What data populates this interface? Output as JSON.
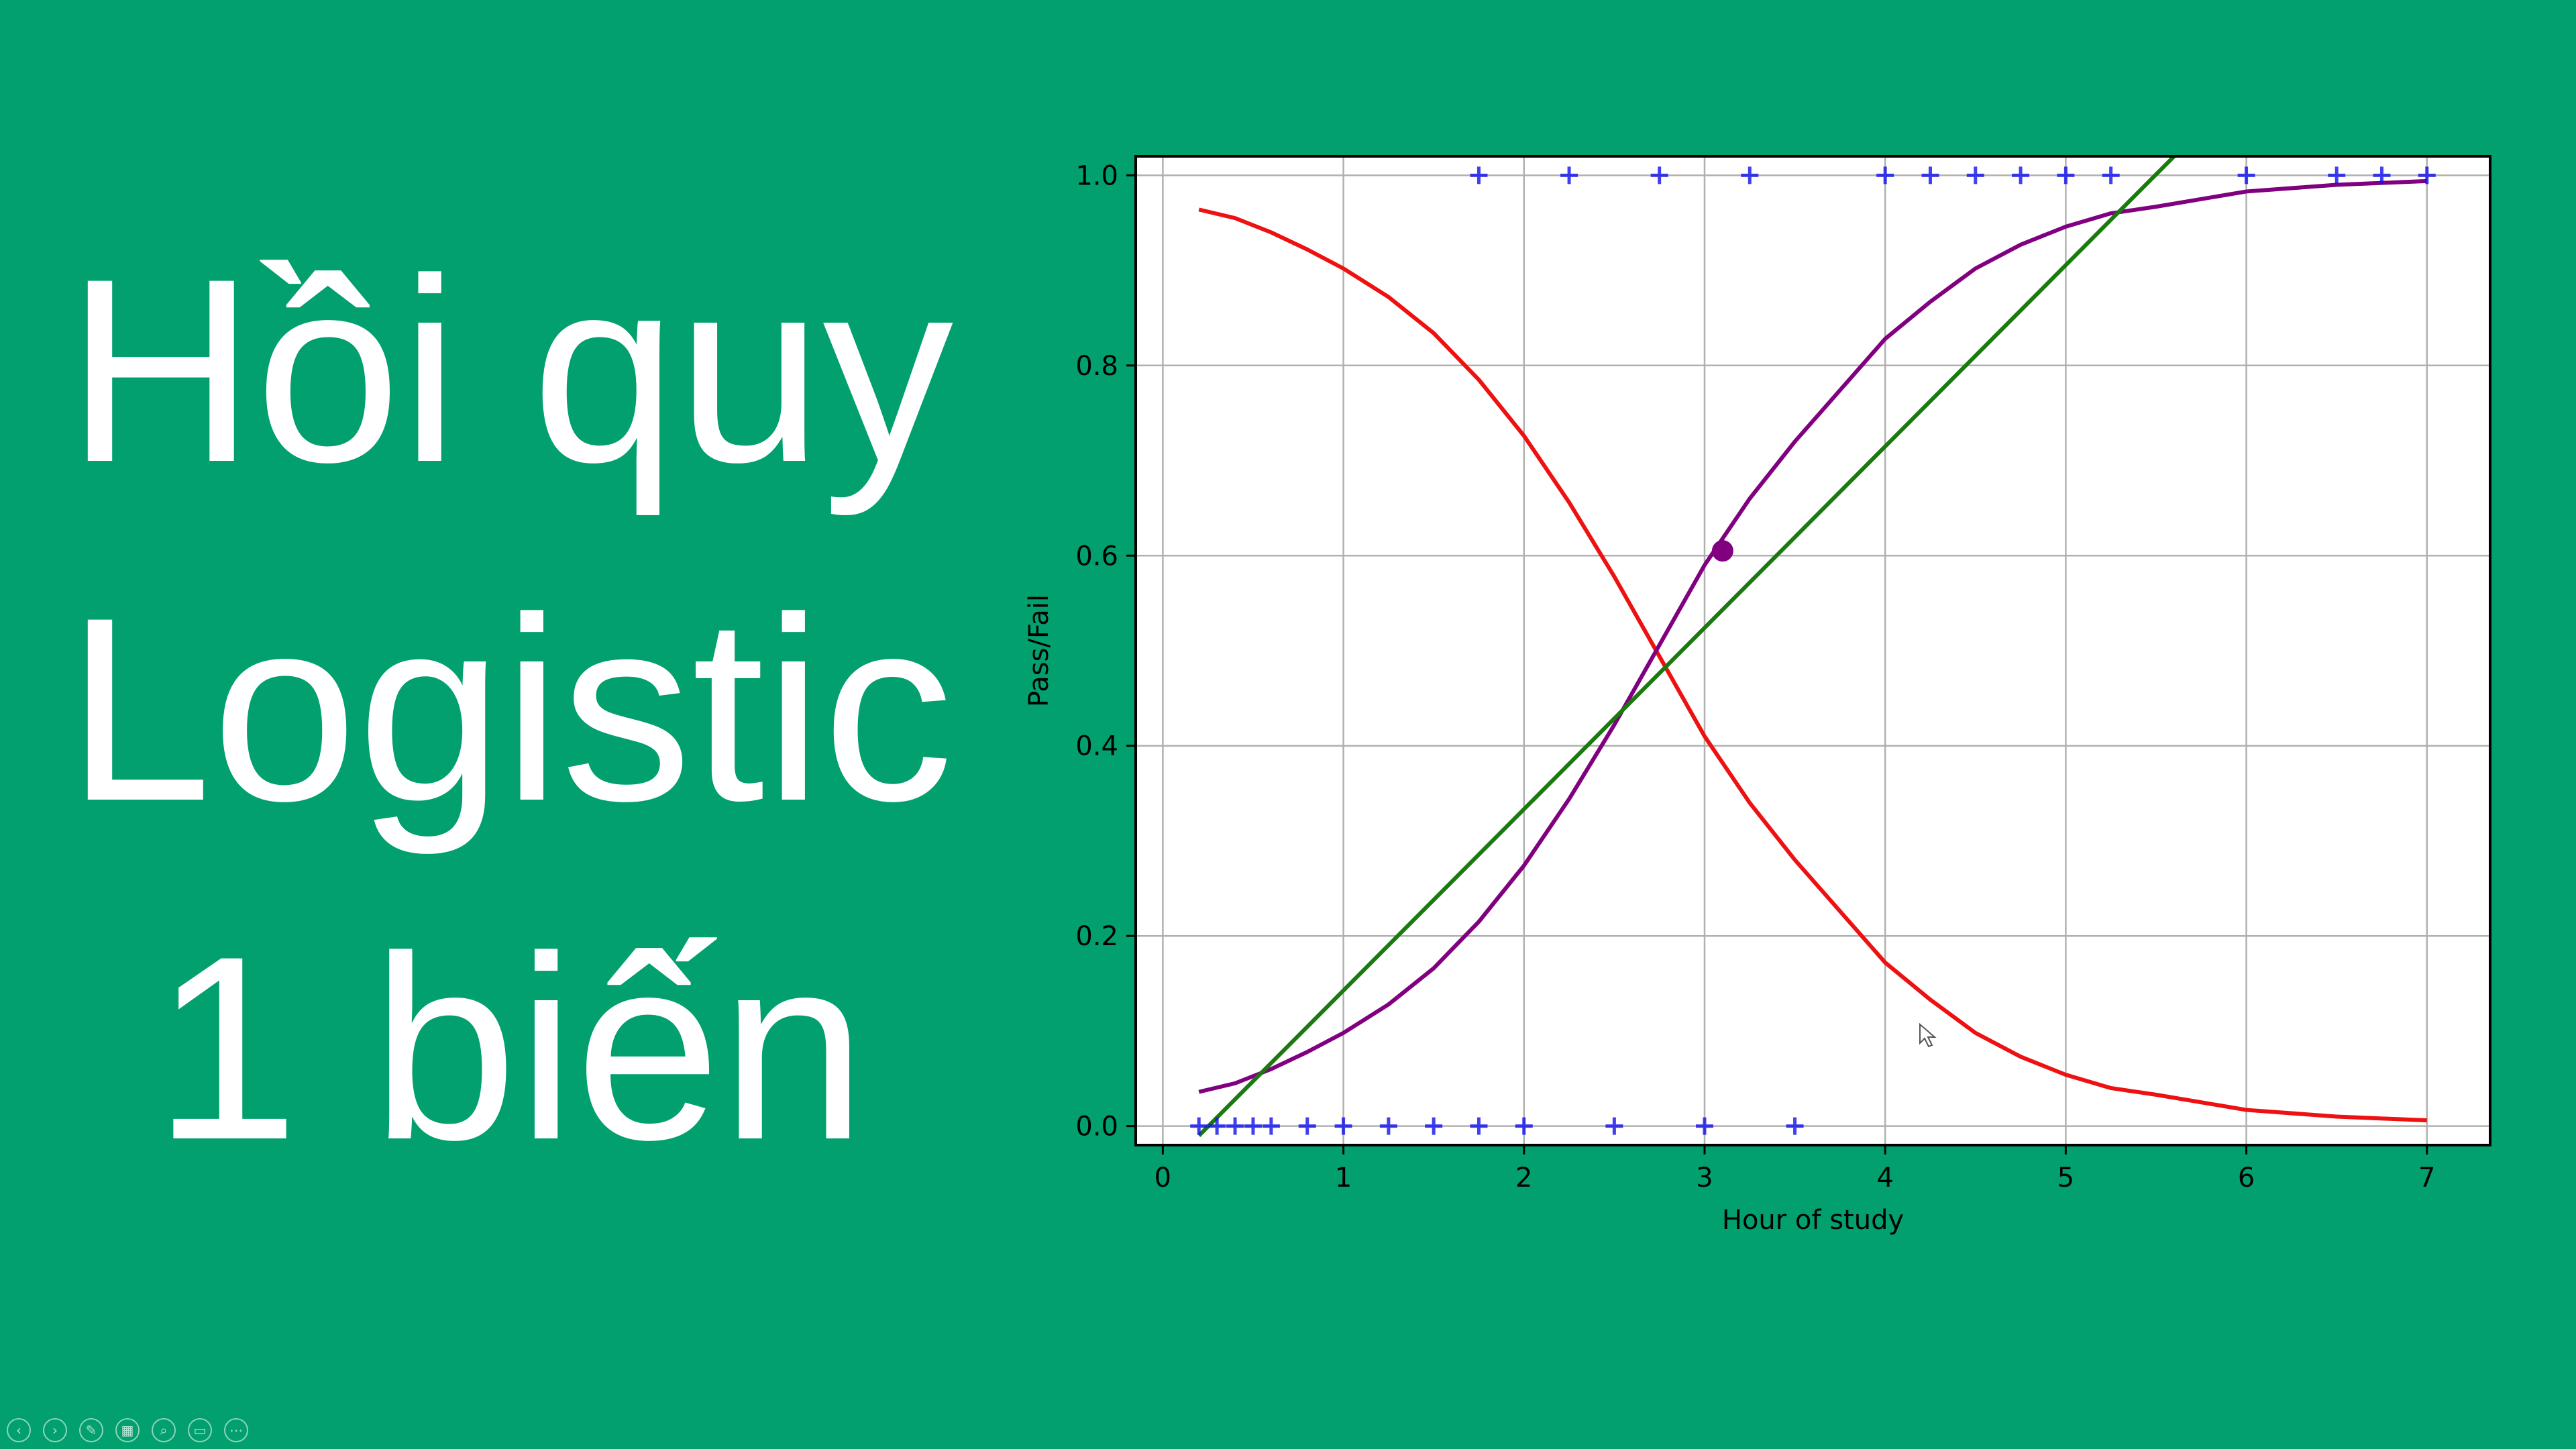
{
  "slide": {
    "title_lines": [
      "Hồi quy",
      "Logistic",
      "1 biến"
    ],
    "background": "#02a06e",
    "text_color": "#ffffff"
  },
  "toolbar": {
    "items": [
      {
        "name": "previous-slide",
        "icon": "chevron-left-icon",
        "glyph": "‹"
      },
      {
        "name": "next-slide",
        "icon": "chevron-right-icon",
        "glyph": "›"
      },
      {
        "name": "pen-tool",
        "icon": "pen-icon",
        "glyph": "✎"
      },
      {
        "name": "see-all-slides",
        "icon": "slides-grid-icon",
        "glyph": "▦"
      },
      {
        "name": "zoom",
        "icon": "magnifier-icon",
        "glyph": "⌕"
      },
      {
        "name": "subtitles",
        "icon": "subtitles-icon",
        "glyph": "▭"
      },
      {
        "name": "more-options",
        "icon": "ellipsis-icon",
        "glyph": "⋯"
      }
    ]
  },
  "chart_data": {
    "type": "line",
    "title": "",
    "xlabel": "Hour of study",
    "ylabel": "Pass/Fail",
    "xlim": [
      -0.15,
      7.35
    ],
    "ylim": [
      -0.02,
      1.02
    ],
    "xticks": [
      0,
      1,
      2,
      3,
      4,
      5,
      6,
      7
    ],
    "yticks": [
      0.0,
      0.2,
      0.4,
      0.6,
      0.8,
      1.0
    ],
    "ytick_labels": [
      "0.0",
      "0.2",
      "0.4",
      "0.6",
      "0.8",
      "1.0"
    ],
    "grid": true,
    "legend": "none",
    "series": [
      {
        "kind": "line",
        "color": "#ee1111",
        "x": [
          0.2,
          0.4,
          0.6,
          0.8,
          1.0,
          1.25,
          1.5,
          1.75,
          2.0,
          2.25,
          2.5,
          2.75,
          3.0,
          3.25,
          3.5,
          4.0,
          4.25,
          4.5,
          4.75,
          5.0,
          5.25,
          5.5,
          6.0,
          6.5,
          7.0
        ],
        "y": [
          0.964,
          0.955,
          0.94,
          0.922,
          0.902,
          0.872,
          0.834,
          0.785,
          0.726,
          0.656,
          0.578,
          0.494,
          0.41,
          0.34,
          0.28,
          0.172,
          0.133,
          0.098,
          0.073,
          0.054,
          0.04,
          0.033,
          0.017,
          0.01,
          0.006
        ]
      },
      {
        "kind": "line",
        "color": "#800080",
        "x": [
          0.2,
          0.4,
          0.6,
          0.8,
          1.0,
          1.25,
          1.5,
          1.75,
          2.0,
          2.25,
          2.5,
          2.75,
          3.0,
          3.25,
          3.5,
          4.0,
          4.25,
          4.5,
          4.75,
          5.0,
          5.25,
          5.5,
          6.0,
          6.5,
          7.0
        ],
        "y": [
          0.036,
          0.045,
          0.06,
          0.078,
          0.098,
          0.128,
          0.166,
          0.215,
          0.274,
          0.344,
          0.422,
          0.506,
          0.59,
          0.66,
          0.72,
          0.828,
          0.867,
          0.902,
          0.927,
          0.946,
          0.96,
          0.967,
          0.983,
          0.99,
          0.994
        ]
      },
      {
        "kind": "line",
        "color": "#1a7a10",
        "x": [
          0.2,
          5.6
        ],
        "y": [
          -0.01,
          1.02
        ]
      }
    ],
    "points": {
      "marker": "plus",
      "color": "#1010ee",
      "x": [
        0.2,
        0.3,
        0.4,
        0.5,
        0.6,
        0.8,
        1.0,
        1.25,
        1.5,
        1.75,
        2.0,
        2.5,
        3.0,
        3.5,
        1.75,
        2.25,
        2.75,
        3.25,
        4.0,
        4.25,
        4.5,
        4.75,
        5.0,
        5.25,
        6.0,
        6.5,
        6.75,
        7.0
      ],
      "y": [
        0,
        0,
        0,
        0,
        0,
        0,
        0,
        0,
        0,
        0,
        0,
        0,
        0,
        0,
        1,
        1,
        1,
        1,
        1,
        1,
        1,
        1,
        1,
        1,
        1,
        1,
        1,
        1
      ]
    },
    "highlight_point": {
      "x": 3.1,
      "y": 0.605,
      "color": "#800080"
    }
  }
}
